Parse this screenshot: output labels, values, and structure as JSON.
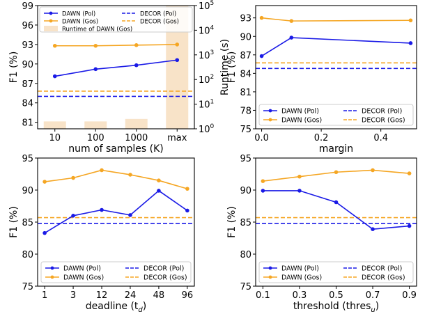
{
  "colors": {
    "pol": "#1a1ae6",
    "gos": "#f5a623",
    "runtime": "#f8e3c8"
  },
  "chart_data": [
    {
      "type": "line",
      "xlabel": "num of samples (K)",
      "ylabel": "F1 (%)",
      "ylabel2": "Runtime (s)",
      "categories": [
        "10",
        "100",
        "1000",
        "max"
      ],
      "ylim": [
        80,
        99
      ],
      "yticks": [
        81,
        84,
        87,
        90,
        93,
        96,
        99
      ],
      "y2lim_log10": [
        0,
        5
      ],
      "y2ticks": [
        "10",
        "10",
        "10",
        "10",
        "10",
        "10"
      ],
      "y2exps": [
        "0",
        "1",
        "2",
        "3",
        "4",
        "5"
      ],
      "series": [
        {
          "name": "DAWN (Pol)",
          "values": [
            88.1,
            89.2,
            89.8,
            90.6
          ]
        },
        {
          "name": "DAWN (Gos)",
          "values": [
            92.8,
            92.8,
            92.9,
            93.0
          ]
        }
      ],
      "hlines": [
        {
          "name": "DECOR (Pol)",
          "value": 85.0
        },
        {
          "name": "DECOR (Gos)",
          "value": 85.8
        }
      ],
      "bars": {
        "name": "Runtime of DAWN (Gos)",
        "values_log10": [
          0.3,
          0.3,
          0.4,
          5.0
        ]
      },
      "legend": "top"
    },
    {
      "type": "line",
      "xlabel": "margin",
      "ylabel": "F1 (%)",
      "x": [
        0.0,
        0.1,
        0.5
      ],
      "xlim": [
        -0.02,
        0.52
      ],
      "xticks": [
        "0.0",
        "0.2",
        "0.4"
      ],
      "xtick_values": [
        0.0,
        0.2,
        0.4
      ],
      "ylim": [
        75,
        95
      ],
      "yticks": [
        75,
        78,
        81,
        84,
        87,
        90,
        93
      ],
      "series": [
        {
          "name": "DAWN (Pol)",
          "values": [
            86.8,
            89.8,
            88.9
          ]
        },
        {
          "name": "DAWN (Gos)",
          "values": [
            93.0,
            92.5,
            92.6
          ]
        }
      ],
      "hlines": [
        {
          "name": "DECOR (Pol)",
          "value": 84.8
        },
        {
          "name": "DECOR (Gos)",
          "value": 85.7
        }
      ],
      "legend": "bottom"
    },
    {
      "type": "line",
      "xlabel": "deadline (t",
      "xlabel_sub": "d",
      "xlabel_end": ")",
      "ylabel": "F1 (%)",
      "categories": [
        "1",
        "3",
        "12",
        "24",
        "48",
        "96"
      ],
      "ylim": [
        75,
        95
      ],
      "yticks": [
        75,
        80,
        85,
        90,
        95
      ],
      "series": [
        {
          "name": "DAWN (Pol)",
          "values": [
            83.3,
            86.0,
            86.9,
            86.1,
            89.9,
            86.8
          ]
        },
        {
          "name": "DAWN (Gos)",
          "values": [
            91.3,
            91.9,
            93.1,
            92.4,
            91.5,
            90.2
          ]
        }
      ],
      "hlines": [
        {
          "name": "DECOR (Pol)",
          "value": 84.8
        },
        {
          "name": "DECOR (Gos)",
          "value": 85.7
        }
      ],
      "legend": "bottom"
    },
    {
      "type": "line",
      "xlabel": "threshold (thres",
      "xlabel_sub": "u",
      "xlabel_end": ")",
      "ylabel": "F1 (%)",
      "categories": [
        "0.1",
        "0.3",
        "0.5",
        "0.7",
        "0.9"
      ],
      "ylim": [
        75,
        95
      ],
      "yticks": [
        75,
        80,
        85,
        90,
        95
      ],
      "series": [
        {
          "name": "DAWN (Pol)",
          "values": [
            89.9,
            89.9,
            88.1,
            83.9,
            84.4
          ]
        },
        {
          "name": "DAWN (Gos)",
          "values": [
            91.4,
            92.1,
            92.8,
            93.1,
            92.6
          ]
        }
      ],
      "hlines": [
        {
          "name": "DECOR (Pol)",
          "value": 84.8
        },
        {
          "name": "DECOR (Gos)",
          "value": 85.7
        }
      ],
      "legend": "bottom"
    }
  ]
}
